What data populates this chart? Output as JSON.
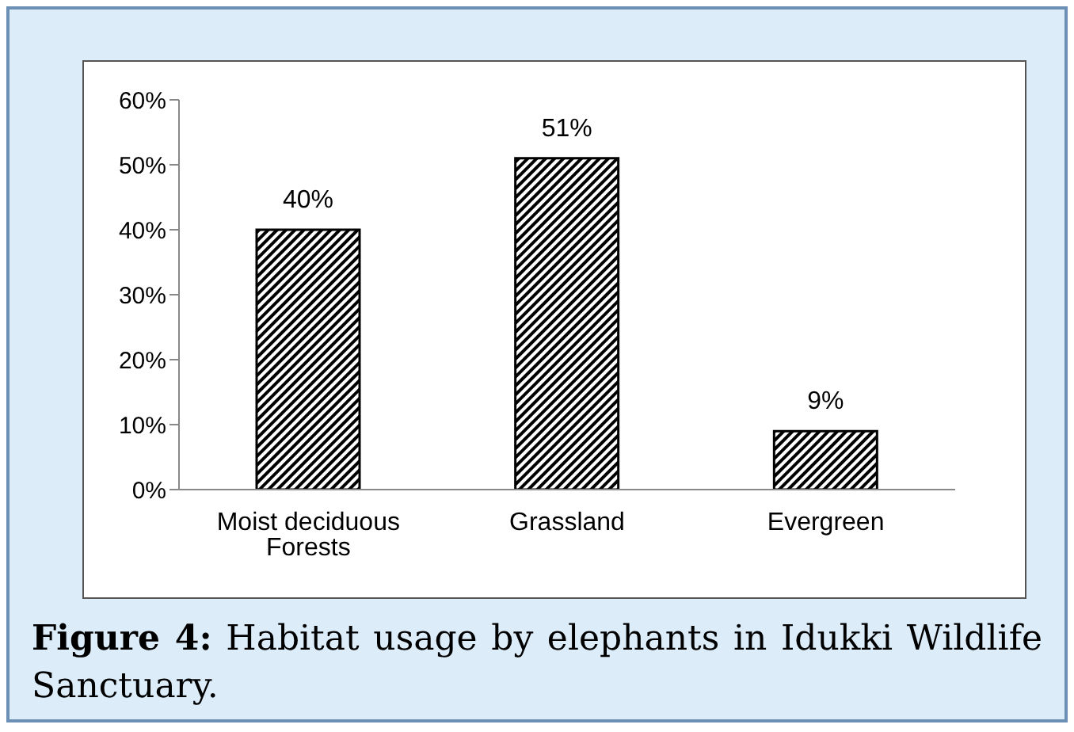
{
  "chart_data": {
    "type": "bar",
    "categories": [
      "Moist deciduous Forests",
      "Grassland",
      "Evergreen"
    ],
    "values": [
      40,
      51,
      9
    ],
    "color": "#000000",
    "value_labels": [
      "40%",
      "51%",
      "9%"
    ],
    "ylim": [
      0,
      60
    ],
    "yticks": [
      {
        "value": 0,
        "label": "0%"
      },
      {
        "value": 10,
        "label": "10%"
      },
      {
        "value": 20,
        "label": "20%"
      },
      {
        "value": 30,
        "label": "30%"
      },
      {
        "value": 40,
        "label": "40%"
      },
      {
        "value": 50,
        "label": "50%"
      },
      {
        "value": 60,
        "label": "60%"
      }
    ],
    "grid": false,
    "legend": false,
    "annotations": [
      "Figure 4: Habitat usage by elephants in Idukki Wildlife Sanctuary."
    ]
  }
}
